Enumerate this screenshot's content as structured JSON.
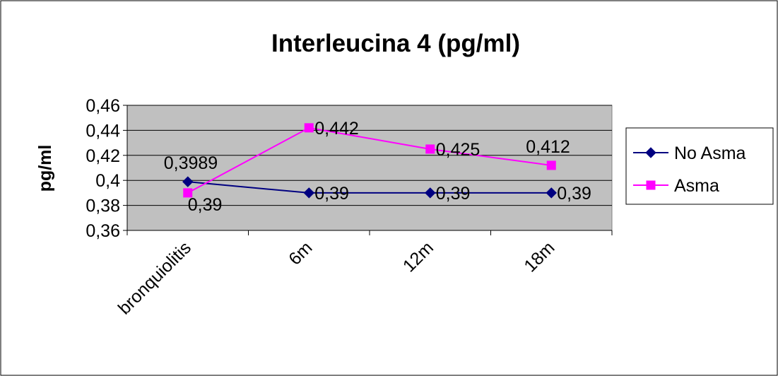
{
  "chart_data": {
    "type": "line",
    "title": "Interleucina 4 (pg/ml)",
    "xlabel": "",
    "ylabel": "pg/ml",
    "categories": [
      "bronquiolitis",
      "6m",
      "12m",
      "18m"
    ],
    "ylim": [
      0.36,
      0.46
    ],
    "yticks": [
      "0,36",
      "0,38",
      "0,4",
      "0,42",
      "0,44",
      "0,46"
    ],
    "grid": true,
    "legend_position": "right",
    "series": [
      {
        "name": "No Asma",
        "values": [
          0.3989,
          0.39,
          0.39,
          0.39
        ],
        "labels": [
          "0,3989",
          "0,39",
          "0,39",
          "0,39"
        ],
        "color": "#000080",
        "marker": "diamond"
      },
      {
        "name": "Asma",
        "values": [
          0.39,
          0.442,
          0.425,
          0.412
        ],
        "labels": [
          "0,39",
          "0,442",
          "0,425",
          "0,412"
        ],
        "color": "#FF00FF",
        "marker": "square"
      }
    ],
    "plot_background": "#C0C0C0"
  }
}
